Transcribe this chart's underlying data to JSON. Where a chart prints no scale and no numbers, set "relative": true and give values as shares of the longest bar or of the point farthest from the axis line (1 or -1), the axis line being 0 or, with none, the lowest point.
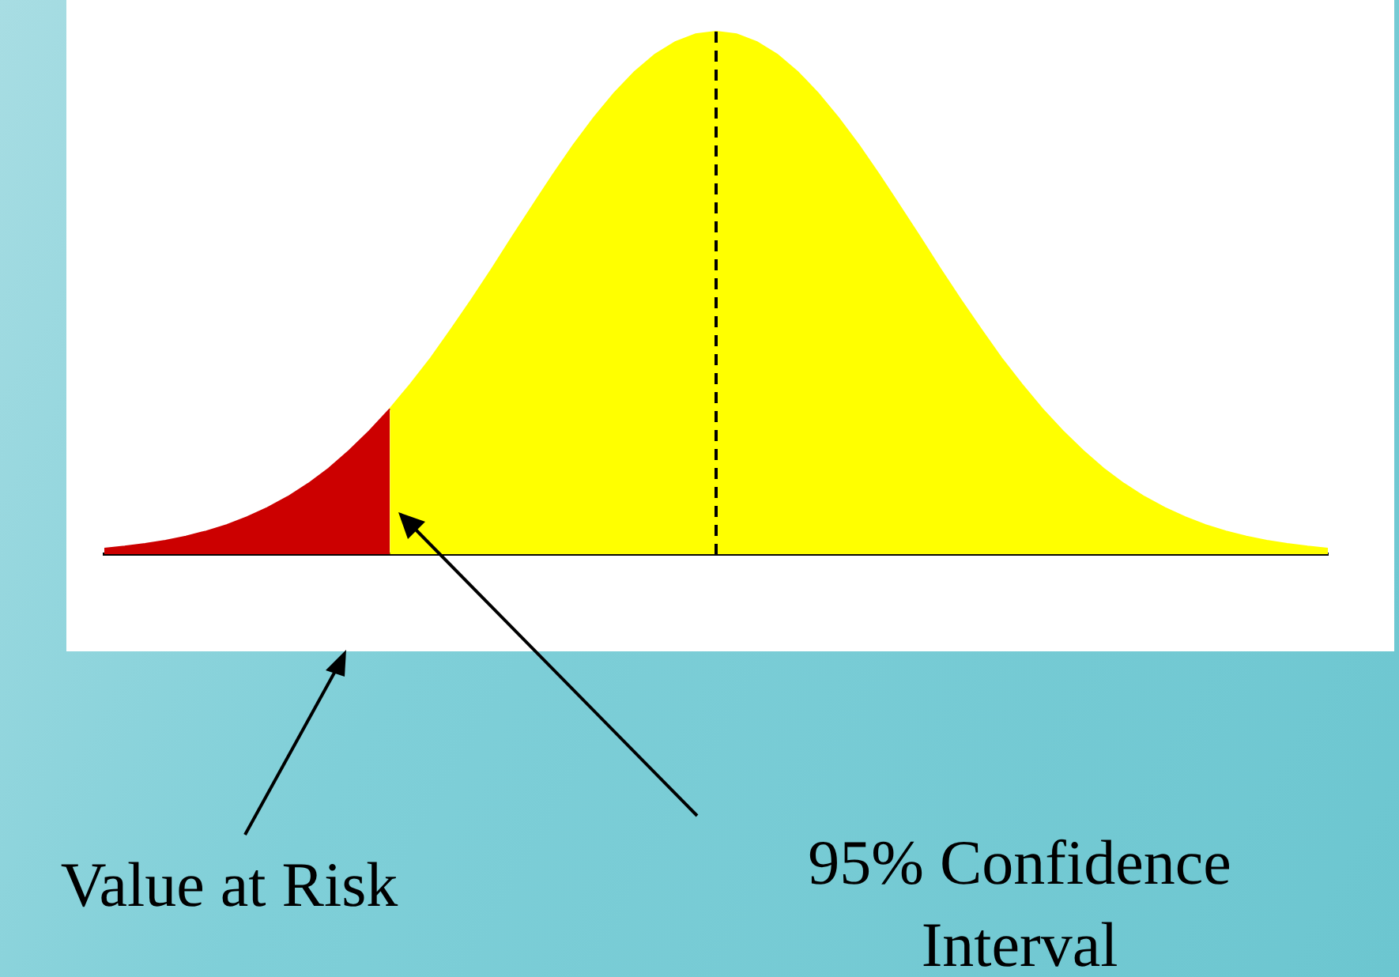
{
  "chart_data": {
    "type": "area",
    "relative": true,
    "legend": false,
    "categories": [
      null,
      null,
      null,
      null,
      null,
      null,
      null,
      null,
      null,
      null,
      null,
      null,
      null,
      null,
      null,
      null,
      null,
      null,
      null,
      null,
      null,
      null,
      null,
      null,
      null,
      null,
      null,
      null,
      null,
      null,
      null,
      null,
      null,
      null,
      null,
      null,
      null,
      null,
      null,
      null,
      null,
      null,
      null,
      null,
      null,
      null,
      null,
      null,
      null,
      null,
      null,
      null,
      null,
      null,
      null,
      null,
      null,
      null,
      null,
      null,
      null
    ],
    "series": [
      {
        "color": "#cc0000",
        "values": [
          0.011,
          0.015,
          0.02,
          0.026,
          0.034,
          0.044,
          0.056,
          0.071,
          0.089,
          0.11,
          0.135,
          0.164,
          0.198,
          0.236,
          0.278,
          null,
          null,
          null,
          null,
          null,
          null,
          null,
          null,
          null,
          null,
          null,
          null,
          null,
          null,
          null,
          null,
          null,
          null,
          null,
          null,
          null,
          null,
          null,
          null,
          null,
          null,
          null,
          null,
          null,
          null,
          null,
          null,
          null,
          null,
          null,
          null,
          null,
          null,
          null,
          null,
          null,
          null,
          null,
          null,
          null,
          null
        ]
      },
      {
        "color": "#ffff00",
        "values": [
          null,
          null,
          null,
          null,
          null,
          null,
          null,
          null,
          null,
          null,
          null,
          null,
          null,
          null,
          0.278,
          0.325,
          0.375,
          0.43,
          0.487,
          0.546,
          0.607,
          0.667,
          0.726,
          0.783,
          0.835,
          0.882,
          0.923,
          0.956,
          0.98,
          0.995,
          1,
          0.995,
          0.98,
          0.956,
          0.923,
          0.882,
          0.835,
          0.783,
          0.726,
          0.667,
          0.607,
          0.546,
          0.487,
          0.43,
          0.375,
          0.325,
          0.278,
          0.236,
          0.198,
          0.164,
          0.135,
          0.11,
          0.089,
          0.071,
          0.056,
          0.044,
          0.034,
          0.026,
          0.02,
          0.015,
          0.011
        ]
      }
    ],
    "ref_lines": [
      {
        "axis": "x",
        "color": "#000000",
        "line_style": "dashed"
      }
    ],
    "annotations": [
      "Value at Risk",
      "95% Confidence Interval"
    ]
  }
}
